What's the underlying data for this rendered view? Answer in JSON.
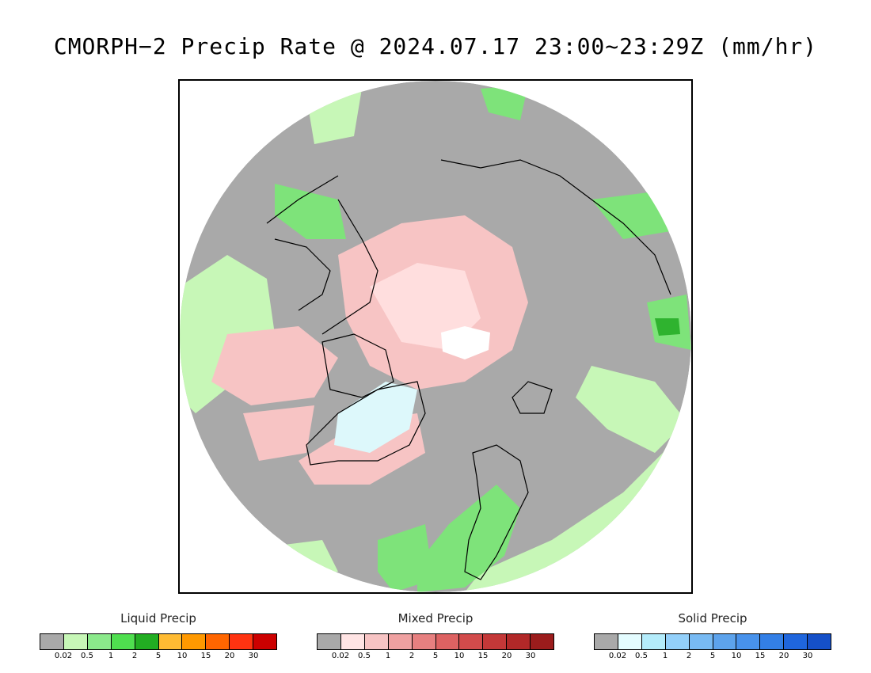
{
  "title": "CMORPH−2 Precip Rate @ 2024.07.17 23:00~23:29Z (mm/hr)",
  "map": {
    "projection": "polar-stereographic-north",
    "colors": {
      "no_precip": "#a9a9a9",
      "liquid_light": "#c7f7b7",
      "liquid_mid": "#7ee37a",
      "liquid_heavy": "#2fb32f",
      "mixed_light": "#f7c4c4",
      "mixed_mid": "#ffdede",
      "solid_light": "#ddf8fb",
      "ice_cap": "#ffffff",
      "coastline": "#000000"
    }
  },
  "legends": [
    {
      "title": "Liquid Precip",
      "colors": [
        "#a9a9a9",
        "#c7f7b7",
        "#8be98b",
        "#4fdf4f",
        "#22ad22",
        "#ffbb33",
        "#ff9900",
        "#ff6600",
        "#ff3311",
        "#cc0000"
      ],
      "ticks": [
        "0.02",
        "0.5",
        "1",
        "2",
        "5",
        "10",
        "15",
        "20",
        "30"
      ]
    },
    {
      "title": "Mixed Precip",
      "colors": [
        "#a9a9a9",
        "#ffe4e4",
        "#f7c4c4",
        "#efa1a1",
        "#e78080",
        "#dd6262",
        "#d24b4b",
        "#c43838",
        "#b12828",
        "#9b1c1c"
      ],
      "ticks": [
        "0.02",
        "0.5",
        "1",
        "2",
        "5",
        "10",
        "15",
        "20",
        "30"
      ]
    },
    {
      "title": "Solid Precip",
      "colors": [
        "#a9a9a9",
        "#e4fcff",
        "#b4ecfb",
        "#93d0fa",
        "#78baf3",
        "#5da3ec",
        "#4892eb",
        "#337fe6",
        "#1f66dd",
        "#1550c8"
      ],
      "ticks": [
        "0.02",
        "0.5",
        "1",
        "2",
        "5",
        "10",
        "15",
        "20",
        "30"
      ]
    }
  ]
}
